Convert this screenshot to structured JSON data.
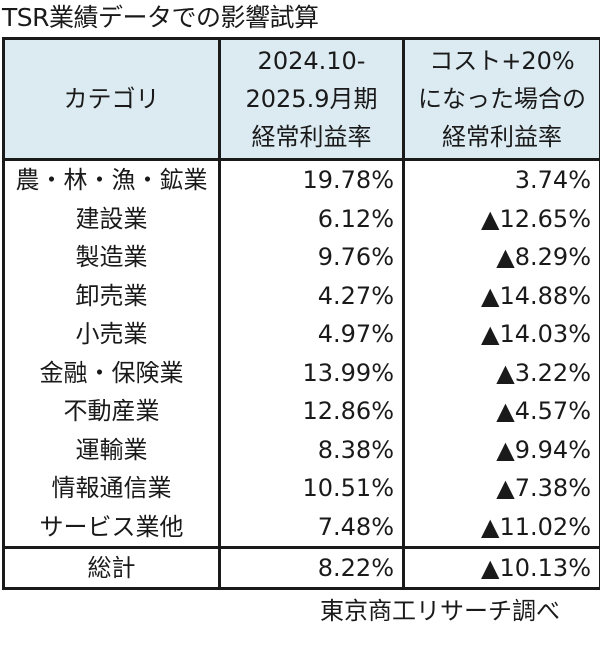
{
  "title": "TSR業績データでの影響試算",
  "table": {
    "headers": {
      "category": "カテゴリ",
      "actual": [
        "2024.10-",
        "2025.9月期",
        "経常利益率"
      ],
      "scenario": [
        "コスト+20%",
        "になった場合の",
        "経常利益率"
      ]
    },
    "rows": [
      {
        "category": "農・林・漁・鉱業",
        "actual": "19.78%",
        "scenario": "3.74%"
      },
      {
        "category": "建設業",
        "actual": "6.12%",
        "scenario": "▲12.65%"
      },
      {
        "category": "製造業",
        "actual": "9.76%",
        "scenario": "▲8.29%"
      },
      {
        "category": "卸売業",
        "actual": "4.27%",
        "scenario": "▲14.88%"
      },
      {
        "category": "小売業",
        "actual": "4.97%",
        "scenario": "▲14.03%"
      },
      {
        "category": "金融・保険業",
        "actual": "13.99%",
        "scenario": "▲3.22%"
      },
      {
        "category": "不動産業",
        "actual": "12.86%",
        "scenario": "▲4.57%"
      },
      {
        "category": "運輸業",
        "actual": "8.38%",
        "scenario": "▲9.94%"
      },
      {
        "category": "情報通信業",
        "actual": "10.51%",
        "scenario": "▲7.38%"
      },
      {
        "category": "サービス業他",
        "actual": "7.48%",
        "scenario": "▲11.02%"
      }
    ],
    "total": {
      "category": "総計",
      "actual": "8.22%",
      "scenario": "▲10.13%"
    }
  },
  "source": "東京商工リサーチ調べ",
  "colors": {
    "header_bg": "#dcebf2",
    "border": "#1a1a1a"
  }
}
